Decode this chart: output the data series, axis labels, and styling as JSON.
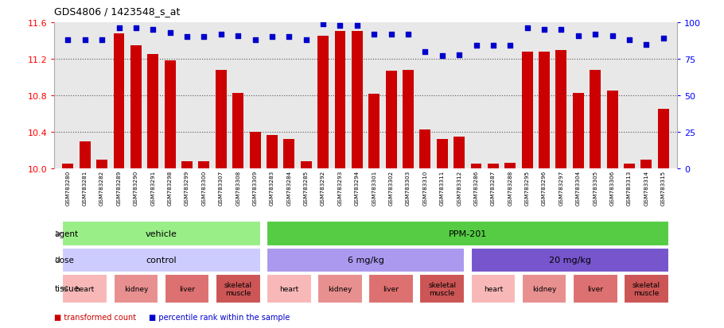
{
  "title": "GDS4806 / 1423548_s_at",
  "samples": [
    "GSM783280",
    "GSM783281",
    "GSM783282",
    "GSM783289",
    "GSM783290",
    "GSM783291",
    "GSM783298",
    "GSM783299",
    "GSM783300",
    "GSM783307",
    "GSM783308",
    "GSM783309",
    "GSM783283",
    "GSM783284",
    "GSM783285",
    "GSM783292",
    "GSM783293",
    "GSM783294",
    "GSM783301",
    "GSM783302",
    "GSM783303",
    "GSM783310",
    "GSM783311",
    "GSM783312",
    "GSM783286",
    "GSM783287",
    "GSM783288",
    "GSM783295",
    "GSM783296",
    "GSM783297",
    "GSM783304",
    "GSM783305",
    "GSM783306",
    "GSM783313",
    "GSM783314",
    "GSM783315"
  ],
  "bar_values": [
    10.05,
    10.3,
    10.1,
    11.48,
    11.35,
    11.25,
    11.18,
    10.08,
    10.08,
    11.08,
    10.83,
    10.4,
    10.37,
    10.32,
    10.08,
    11.45,
    11.5,
    11.5,
    10.82,
    11.07,
    11.08,
    10.43,
    10.32,
    10.35,
    10.05,
    10.05,
    10.06,
    11.28,
    11.28,
    11.3,
    10.83,
    11.08,
    10.85,
    10.05,
    10.1,
    10.65
  ],
  "percentile_values": [
    88,
    88,
    88,
    96,
    96,
    95,
    93,
    90,
    90,
    92,
    91,
    88,
    90,
    90,
    88,
    99,
    98,
    98,
    92,
    92,
    92,
    80,
    77,
    78,
    84,
    84,
    84,
    96,
    95,
    95,
    91,
    92,
    91,
    88,
    85,
    89
  ],
  "ylim_left": [
    10.0,
    11.6
  ],
  "yticks_left": [
    10.0,
    10.4,
    10.8,
    11.2,
    11.6
  ],
  "ylim_right": [
    0,
    100
  ],
  "yticks_right": [
    0,
    25,
    50,
    75,
    100
  ],
  "bar_color": "#cc0000",
  "dot_color": "#0000cc",
  "plot_bg": "#e8e8e8",
  "xlabel_bg": "#d0d0d0",
  "agent_groups": [
    {
      "label": "vehicle",
      "start": 0,
      "end": 11,
      "color": "#99ee88"
    },
    {
      "label": "PPM-201",
      "start": 12,
      "end": 35,
      "color": "#55cc44"
    }
  ],
  "dose_groups": [
    {
      "label": "control",
      "start": 0,
      "end": 11,
      "color": "#ccccff"
    },
    {
      "label": "6 mg/kg",
      "start": 12,
      "end": 23,
      "color": "#aa99ee"
    },
    {
      "label": "20 mg/kg",
      "start": 24,
      "end": 35,
      "color": "#7755cc"
    }
  ],
  "tissue_groups": [
    {
      "label": "heart",
      "start": 0,
      "end": 2
    },
    {
      "label": "kidney",
      "start": 3,
      "end": 5
    },
    {
      "label": "liver",
      "start": 6,
      "end": 8
    },
    {
      "label": "skeletal\nmuscle",
      "start": 9,
      "end": 11
    },
    {
      "label": "heart",
      "start": 12,
      "end": 14
    },
    {
      "label": "kidney",
      "start": 15,
      "end": 17
    },
    {
      "label": "liver",
      "start": 18,
      "end": 20
    },
    {
      "label": "skeletal\nmuscle",
      "start": 21,
      "end": 23
    },
    {
      "label": "heart",
      "start": 24,
      "end": 26
    },
    {
      "label": "kidney",
      "start": 27,
      "end": 29
    },
    {
      "label": "liver",
      "start": 30,
      "end": 32
    },
    {
      "label": "skeletal\nmuscle",
      "start": 33,
      "end": 35
    }
  ],
  "tissue_colors": [
    "#f8b8b8",
    "#e89090",
    "#dd7070",
    "#cc5555"
  ]
}
